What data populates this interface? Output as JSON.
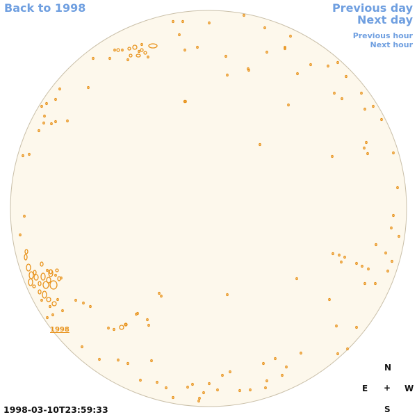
{
  "navigation": {
    "back_label": "Back to 1998",
    "previous_day_label": "Previous day",
    "next_day_label": "Next day",
    "previous_hour_label": "Previous hour",
    "next_hour_label": "Next hour"
  },
  "image": {
    "timestamp": "1998-03-10T23:59:33",
    "region_label": "1998",
    "disk_fill_color": "#fdf8ec",
    "disk_border_color": "#c9bfa8",
    "contour_color": "#e8921a",
    "nav_color": "#6f9fe0"
  },
  "compass": {
    "north": "N",
    "east": "E",
    "center": "+",
    "west": "W",
    "south": "S"
  }
}
